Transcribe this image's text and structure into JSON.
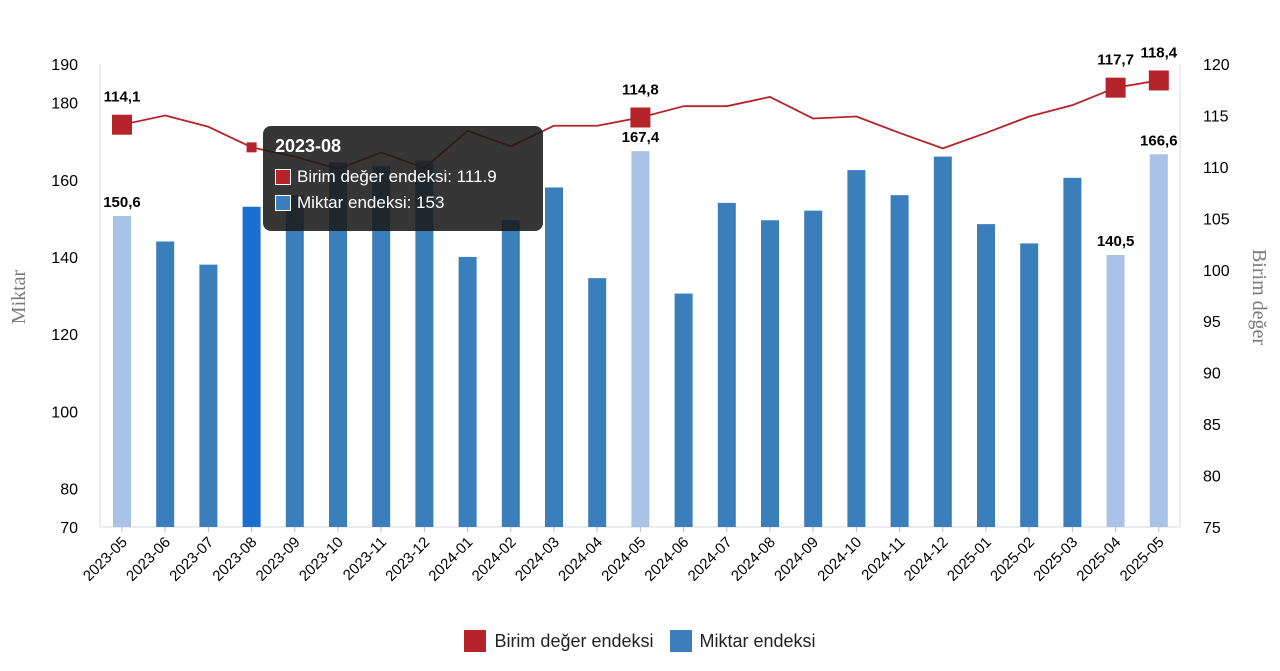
{
  "chart_data": {
    "type": "bar",
    "categories": [
      "2023-05",
      "2023-06",
      "2023-07",
      "2023-08",
      "2023-09",
      "2023-10",
      "2023-11",
      "2023-12",
      "2024-01",
      "2024-02",
      "2024-03",
      "2024-04",
      "2024-05",
      "2024-06",
      "2024-07",
      "2024-08",
      "2024-09",
      "2024-10",
      "2024-11",
      "2024-12",
      "2025-01",
      "2025-02",
      "2025-03",
      "2025-04",
      "2025-05"
    ],
    "series": [
      {
        "name": "Miktar endeksi",
        "chart_kind": "bar",
        "axis": "left",
        "color": "#3a7fbc",
        "highlight_color": "#a9c2e8",
        "active_color": "#1a6fcf",
        "values": [
          150.6,
          144,
          138,
          153,
          156,
          164.5,
          163.5,
          165,
          140,
          149.5,
          158,
          134.5,
          167.4,
          130.5,
          154,
          149.5,
          152,
          162.5,
          156,
          166,
          148.5,
          143.5,
          160.5,
          140.5,
          166.6
        ],
        "highlighted": [
          0,
          12,
          23,
          24
        ],
        "labels": {
          "0": "150,6",
          "12": "167,4",
          "23": "140,5",
          "24": "166,6"
        }
      },
      {
        "name": "Birim değer endeksi",
        "chart_kind": "line",
        "axis": "right",
        "color": "#b5242a",
        "values": [
          114.1,
          115,
          113.9,
          111.9,
          111,
          109.8,
          111.4,
          109.9,
          113.5,
          112,
          114,
          114,
          114.8,
          115.9,
          115.9,
          116.8,
          114.7,
          114.9,
          113.3,
          111.8,
          113.3,
          114.9,
          116,
          117.7,
          118.4
        ],
        "markers": [
          0,
          12,
          23,
          24
        ],
        "labels": {
          "0": "114,1",
          "12": "114,8",
          "23": "117,7",
          "24": "118,4"
        }
      }
    ],
    "yleft": {
      "label": "Miktar",
      "ticks": [
        70,
        80,
        100,
        120,
        140,
        160,
        180,
        190
      ],
      "ylim": [
        70,
        190
      ]
    },
    "yright": {
      "label": "Birim değer",
      "ticks": [
        75,
        80,
        85,
        90,
        95,
        100,
        105,
        110,
        115,
        120
      ],
      "ylim": [
        75,
        120
      ]
    },
    "legend_position": "bottom",
    "grid": false,
    "active_index": 3,
    "tooltip": {
      "title": "2023-08",
      "rows": [
        {
          "label": "Birim değer endeksi: 111.9",
          "color": "#b5242a"
        },
        {
          "label": "Miktar endeksi: 153",
          "color": "#3a7fbc"
        }
      ]
    }
  }
}
